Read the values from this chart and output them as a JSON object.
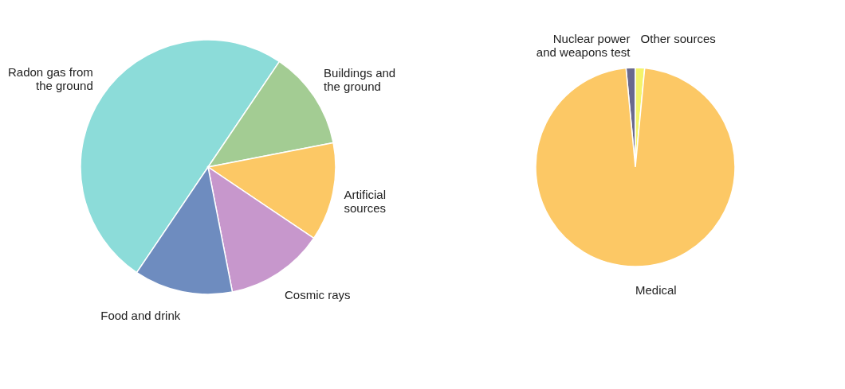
{
  "chart_data": [
    {
      "type": "pie",
      "categories": [
        "Radon gas from the ground",
        "Buildings and the ground",
        "Artificial sources",
        "Cosmic rays",
        "Food and drink"
      ],
      "values": [
        50,
        12.5,
        12.5,
        12.5,
        12.5
      ],
      "colors": [
        "#8cdcd9",
        "#a3cc93",
        "#fcc865",
        "#c797cc",
        "#6e8cbf"
      ],
      "legend": false
    },
    {
      "type": "pie",
      "categories": [
        "Nuclear power and weapons test",
        "Other sources",
        "Medical"
      ],
      "values": [
        1.5,
        1.5,
        97
      ],
      "colors": [
        "#6a6a8e",
        "#f4f46a",
        "#fcc865"
      ],
      "legend": false
    }
  ]
}
